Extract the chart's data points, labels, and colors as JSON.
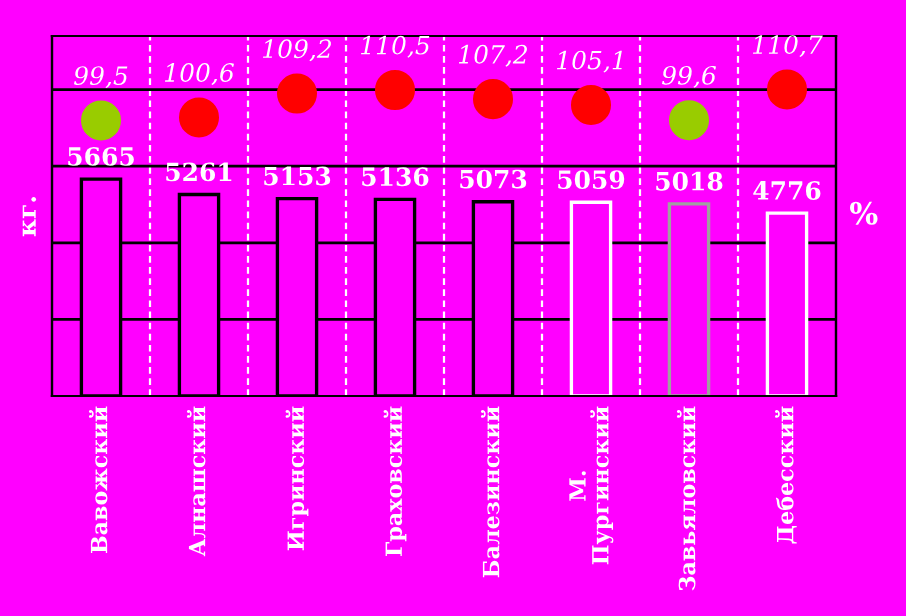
{
  "chart_data": {
    "type": "bar",
    "ylabel": "кг.",
    "y2label": "%",
    "categories": [
      "Вавожский",
      "Алнашский",
      "Игринский",
      "Граховский",
      "Балезинский",
      "М.\nПургинский",
      "Завьяловский",
      "Дебесский"
    ],
    "series": [
      {
        "colors": [
          "#000000",
          "#000000",
          "#000000",
          "#000000",
          "#000000",
          "#ffffff",
          "#a0a0a0",
          "#ffffff"
        ],
        "values": [
          5665,
          5261,
          5153,
          5136,
          5073,
          5059,
          5018,
          4776
        ]
      },
      {
        "type": "scatter",
        "axis": "y2",
        "marker": "circle",
        "colors": [
          "#99cc00",
          "#ff0000",
          "#ff0000",
          "#ff0000",
          "#ff0000",
          "#ff0000",
          "#99cc00",
          "#ff0000"
        ],
        "values": [
          99.5,
          100.6,
          109.2,
          110.5,
          107.2,
          105.1,
          99.6,
          110.7
        ],
        "value_labels": [
          "99,5",
          "100,6",
          "109,2",
          "110,5",
          "107,2",
          "105,1",
          "99,6",
          "110,7"
        ]
      }
    ],
    "data_labels": true,
    "ylim": [
      0,
      9400
    ],
    "yticks": [
      {
        "value": 2000,
        "label": null
      },
      {
        "value": 4000,
        "label": null
      },
      {
        "value": 6000,
        "label": null
      },
      {
        "value": 8000,
        "label": null
      }
    ],
    "y2lim": [
      0,
      130
    ],
    "grid": true,
    "tick_labels": "x"
  }
}
